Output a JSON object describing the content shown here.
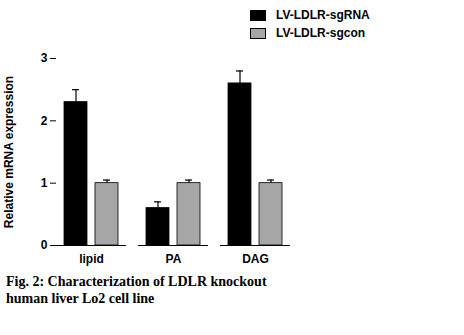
{
  "chart_data": {
    "type": "bar",
    "caption": "Fig. 2: Characterization of LDLR knockout human liver Lo2 cell line",
    "y_label": "Relative mRNA expression",
    "categories": [
      "lipid",
      "PA",
      "DAG"
    ],
    "series": [
      {
        "name": "LV-LDLR-sgRNA",
        "color": "#000000",
        "values": [
          2.3,
          0.6,
          2.6
        ],
        "errors": [
          0.2,
          0.1,
          0.2
        ]
      },
      {
        "name": "LV-LDLR-sgcon",
        "color": "#a6a6a6",
        "values": [
          1.0,
          1.0,
          1.0
        ],
        "errors": [
          0.05,
          0.05,
          0.05
        ]
      }
    ],
    "ylim": [
      0,
      3
    ],
    "yticks": [
      0,
      1,
      2,
      3
    ],
    "grid": false,
    "legend": "top-right"
  }
}
